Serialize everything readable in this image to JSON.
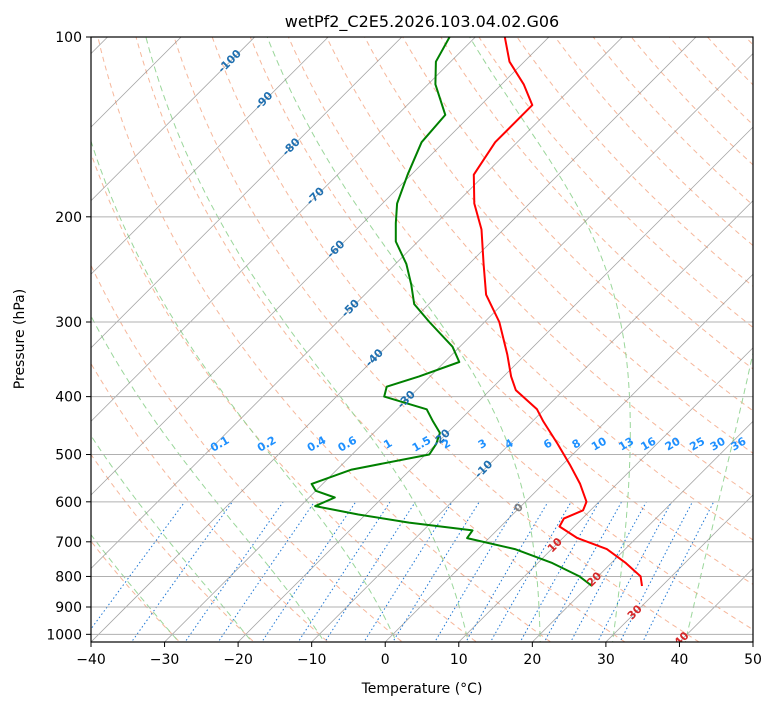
{
  "chart_data": {
    "type": "skew-t",
    "title": "wetPf2_C2E5.2026.103.04.02.G06",
    "xlabel": "Temperature (°C)",
    "ylabel": "Pressure (hPa)",
    "xlim": [
      -40,
      50
    ],
    "ylim": [
      1030,
      100
    ],
    "x_ticks": [
      -40,
      -30,
      -20,
      -10,
      0,
      10,
      20,
      30,
      40,
      50
    ],
    "y_ticks": [
      100,
      200,
      300,
      400,
      500,
      600,
      700,
      800,
      900,
      1000
    ],
    "temperature_profile": {
      "name": "Temperature",
      "color": "#ff0000",
      "points": [
        [
          830,
          27.3
        ],
        [
          800,
          25.8
        ],
        [
          760,
          22.0
        ],
        [
          720,
          17.5
        ],
        [
          690,
          12.0
        ],
        [
          660,
          8.0
        ],
        [
          640,
          7.5
        ],
        [
          620,
          9.0
        ],
        [
          600,
          8.3
        ],
        [
          560,
          5.0
        ],
        [
          520,
          1.0
        ],
        [
          480,
          -3.5
        ],
        [
          440,
          -8.5
        ],
        [
          420,
          -11.0
        ],
        [
          390,
          -16.5
        ],
        [
          370,
          -19.0
        ],
        [
          340,
          -22.5
        ],
        [
          300,
          -28.0
        ],
        [
          270,
          -33.5
        ],
        [
          240,
          -38.0
        ],
        [
          210,
          -43.0
        ],
        [
          190,
          -47.5
        ],
        [
          170,
          -51.5
        ],
        [
          150,
          -53.0
        ],
        [
          130,
          -53.0
        ],
        [
          120,
          -57.0
        ],
        [
          110,
          -62.0
        ],
        [
          100,
          -66.0
        ]
      ]
    },
    "dewpoint_profile": {
      "name": "Dewpoint",
      "color": "#008000",
      "points": [
        [
          830,
          20.5
        ],
        [
          800,
          17.5
        ],
        [
          760,
          12.0
        ],
        [
          720,
          5.0
        ],
        [
          690,
          -3.0
        ],
        [
          670,
          -3.3
        ],
        [
          650,
          -13.0
        ],
        [
          630,
          -21.0
        ],
        [
          610,
          -28.0
        ],
        [
          590,
          -26.5
        ],
        [
          575,
          -30.0
        ],
        [
          560,
          -31.5
        ],
        [
          530,
          -28.0
        ],
        [
          500,
          -19.5
        ],
        [
          480,
          -20.0
        ],
        [
          460,
          -21.0
        ],
        [
          440,
          -23.5
        ],
        [
          420,
          -26.0
        ],
        [
          400,
          -33.5
        ],
        [
          385,
          -34.5
        ],
        [
          370,
          -31.5
        ],
        [
          350,
          -28.0
        ],
        [
          330,
          -31.0
        ],
        [
          300,
          -37.5
        ],
        [
          280,
          -42.0
        ],
        [
          260,
          -45.0
        ],
        [
          240,
          -48.5
        ],
        [
          220,
          -53.0
        ],
        [
          205,
          -55.5
        ],
        [
          190,
          -58.0
        ],
        [
          170,
          -60.5
        ],
        [
          150,
          -63.0
        ],
        [
          135,
          -63.5
        ],
        [
          120,
          -69.0
        ],
        [
          110,
          -72.0
        ],
        [
          100,
          -73.5
        ]
      ]
    },
    "isotherm_labels": [
      "-100",
      "-90",
      "-80",
      "-70",
      "-60",
      "-50",
      "-40",
      "-30",
      "-20",
      "-10",
      "0",
      "10",
      "20",
      "30",
      "40"
    ],
    "isotherm_label_values": [
      -100,
      -90,
      -80,
      -70,
      -60,
      -50,
      -40,
      -30,
      -20,
      -10,
      0,
      10,
      20,
      30,
      40
    ],
    "mixing_ratio_labels": [
      "0.1",
      "0.2",
      "0.4",
      "0.6",
      "1",
      "1.5",
      "2",
      "3",
      "4",
      "6",
      "8",
      "10",
      "13",
      "16",
      "20",
      "25",
      "30",
      "36"
    ],
    "mixing_ratio_values": [
      0.1,
      0.2,
      0.4,
      0.6,
      1,
      1.5,
      2,
      3,
      4,
      6,
      8,
      10,
      13,
      16,
      20,
      25,
      30,
      36
    ],
    "dry_adiabats_theta_C": [
      -30,
      -20,
      -10,
      0,
      10,
      20,
      30,
      40,
      50,
      60,
      70,
      80,
      90,
      100,
      110,
      120,
      130,
      140,
      150,
      160,
      170,
      180,
      190,
      200
    ],
    "moist_adiabats_start_C": [
      -30,
      -20,
      -10,
      0,
      10,
      20,
      30,
      40,
      50
    ],
    "colors": {
      "grid": "#b0b0b0",
      "isotherm": "#808080",
      "dry_adiabat": "#f4a582",
      "moist_adiabat": "#8fd18f",
      "mixing_ratio": "#1f77d4",
      "isotherm_label_cold": "#1f6fb0",
      "isotherm_label_zero": "#808080",
      "isotherm_label_warm": "#d62728",
      "mixing_label": "#1e90ff"
    }
  }
}
